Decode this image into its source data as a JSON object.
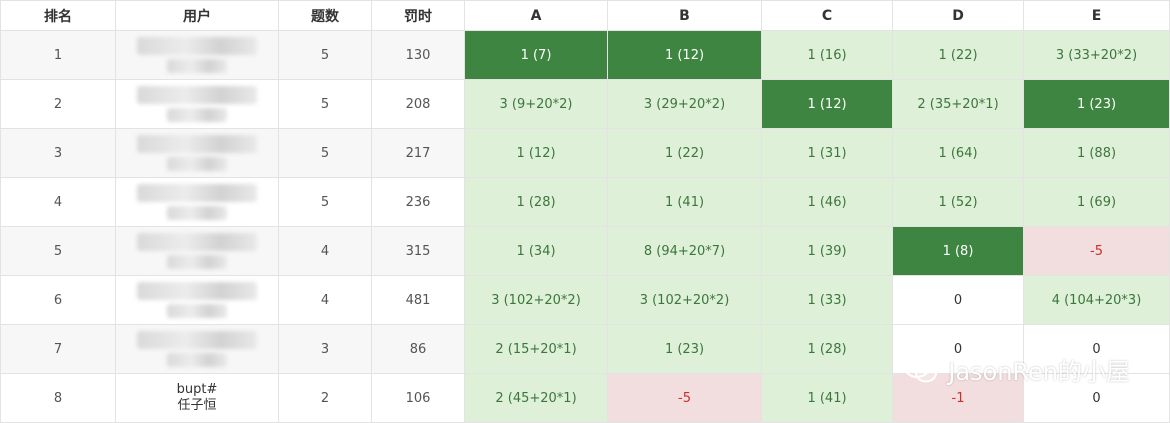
{
  "headers": [
    "排名",
    "用户",
    "题数",
    "罚时",
    "A",
    "B",
    "C",
    "D",
    "E"
  ],
  "rows": [
    {
      "rank": "1",
      "user": "",
      "solved": "5",
      "penalty": "130",
      "cells": [
        {
          "t": "1 (7)",
          "s": "fb"
        },
        {
          "t": "1 (12)",
          "s": "fb"
        },
        {
          "t": "1 (16)",
          "s": "ac"
        },
        {
          "t": "1 (22)",
          "s": "ac"
        },
        {
          "t": "3 (33+20*2)",
          "s": "ac"
        }
      ]
    },
    {
      "rank": "2",
      "user": "",
      "solved": "5",
      "penalty": "208",
      "cells": [
        {
          "t": "3 (9+20*2)",
          "s": "ac"
        },
        {
          "t": "3 (29+20*2)",
          "s": "ac"
        },
        {
          "t": "1 (12)",
          "s": "fb"
        },
        {
          "t": "2 (35+20*1)",
          "s": "ac"
        },
        {
          "t": "1 (23)",
          "s": "fb"
        }
      ]
    },
    {
      "rank": "3",
      "user": "",
      "solved": "5",
      "penalty": "217",
      "cells": [
        {
          "t": "1 (12)",
          "s": "ac"
        },
        {
          "t": "1 (22)",
          "s": "ac"
        },
        {
          "t": "1 (31)",
          "s": "ac"
        },
        {
          "t": "1 (64)",
          "s": "ac"
        },
        {
          "t": "1 (88)",
          "s": "ac"
        }
      ]
    },
    {
      "rank": "4",
      "user": "",
      "solved": "5",
      "penalty": "236",
      "cells": [
        {
          "t": "1 (28)",
          "s": "ac"
        },
        {
          "t": "1 (41)",
          "s": "ac"
        },
        {
          "t": "1 (46)",
          "s": "ac"
        },
        {
          "t": "1 (52)",
          "s": "ac"
        },
        {
          "t": "1 (69)",
          "s": "ac"
        }
      ]
    },
    {
      "rank": "5",
      "user": "",
      "solved": "4",
      "penalty": "315",
      "cells": [
        {
          "t": "1 (34)",
          "s": "ac"
        },
        {
          "t": "8 (94+20*7)",
          "s": "ac"
        },
        {
          "t": "1 (39)",
          "s": "ac"
        },
        {
          "t": "1 (8)",
          "s": "fb"
        },
        {
          "t": "-5",
          "s": "wa"
        }
      ]
    },
    {
      "rank": "6",
      "user": "",
      "solved": "4",
      "penalty": "481",
      "cells": [
        {
          "t": "3 (102+20*2)",
          "s": "ac"
        },
        {
          "t": "3 (102+20*2)",
          "s": "ac"
        },
        {
          "t": "1 (33)",
          "s": "ac"
        },
        {
          "t": "0",
          "s": "none"
        },
        {
          "t": "4 (104+20*3)",
          "s": "ac"
        }
      ]
    },
    {
      "rank": "7",
      "user": "",
      "solved": "3",
      "penalty": "86",
      "cells": [
        {
          "t": "2 (15+20*1)",
          "s": "ac"
        },
        {
          "t": "1 (23)",
          "s": "ac"
        },
        {
          "t": "1 (28)",
          "s": "ac"
        },
        {
          "t": "0",
          "s": "none"
        },
        {
          "t": "0",
          "s": "none"
        }
      ]
    },
    {
      "rank": "8",
      "user": "bupt#",
      "user2": "任子恒",
      "solved": "2",
      "penalty": "106",
      "cells": [
        {
          "t": "2 (45+20*1)",
          "s": "ac"
        },
        {
          "t": "-5",
          "s": "wa"
        },
        {
          "t": "1 (41)",
          "s": "ac"
        },
        {
          "t": "-1",
          "s": "wa"
        },
        {
          "t": "0",
          "s": "none"
        }
      ]
    }
  ],
  "watermark": "JasonRen的小屋",
  "colors": {
    "first_blood": "#3e8541",
    "accepted": "#dff0d8",
    "wrong": "#f2dede"
  }
}
